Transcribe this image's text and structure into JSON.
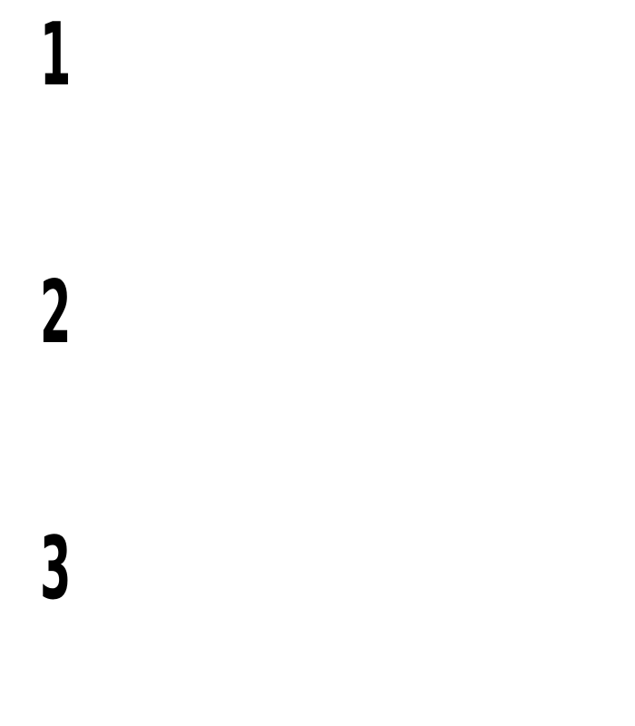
{
  "numbers": [
    "1",
    "2",
    "3"
  ],
  "colors": {
    "text": "#000000",
    "background": "#ffffff"
  }
}
